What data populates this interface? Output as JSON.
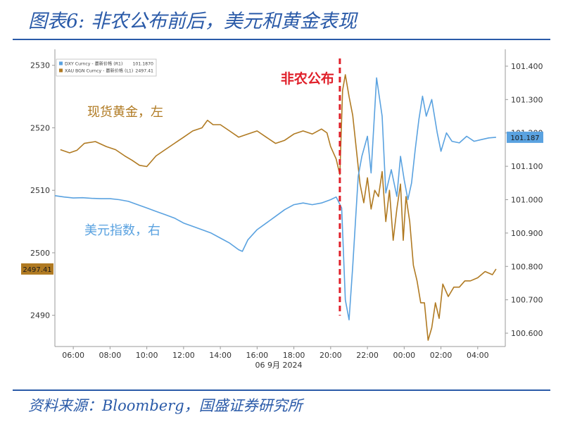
{
  "figure": {
    "title": "图表6:  非农公布前后，美元和黄金表现",
    "source": "资料来源：Bloomberg，国盛证券研究所"
  },
  "colors": {
    "gold": "#b07a22",
    "dollar": "#5aa2e0",
    "event_line": "#e0202a",
    "header": "#2a5aa8"
  },
  "chart_data": {
    "type": "line",
    "title": "",
    "xlabel": "06 9月 2024",
    "x_ticks": [
      "06:00",
      "08:00",
      "10:00",
      "12:00",
      "14:00",
      "16:00",
      "18:00",
      "20:00",
      "22:00",
      "00:00",
      "02:00",
      "04:00"
    ],
    "left_axis": {
      "min": 2485,
      "max": 2532,
      "ticks": [
        "2530",
        "2520",
        "2510",
        "2500",
        "2490"
      ]
    },
    "right_axis": {
      "min": 100.56,
      "max": 101.44,
      "ticks": [
        "101.400",
        "101.300",
        "101.200",
        "101.100",
        "101.000",
        "100.900",
        "100.800",
        "100.700",
        "100.600"
      ]
    },
    "event": {
      "label": "非农公布",
      "time": 20.5
    },
    "annotations": {
      "gold": "现货黄金，左",
      "dollar": "美元指数，右"
    },
    "legend": [
      {
        "name": "DXY Curncy - 最新价格 (R1)",
        "value": "101.1870",
        "color": "#5aa2e0"
      },
      {
        "name": "XAU BGN Curncy - 最新价格 (L1)",
        "value": "2497.41",
        "color": "#b07a22"
      }
    ],
    "last_values": {
      "gold": "2497.41",
      "dollar": "101.187"
    },
    "series": [
      {
        "name": "XAU BGN Curncy",
        "axis": "left",
        "points": [
          [
            5.3,
            2516.5
          ],
          [
            5.8,
            2516
          ],
          [
            6.2,
            2516.4
          ],
          [
            6.6,
            2517.5
          ],
          [
            7.2,
            2517.8
          ],
          [
            7.8,
            2517
          ],
          [
            8.3,
            2516.5
          ],
          [
            8.8,
            2515.5
          ],
          [
            9.2,
            2514.8
          ],
          [
            9.6,
            2514
          ],
          [
            10.0,
            2513.8
          ],
          [
            10.5,
            2515.5
          ],
          [
            11.0,
            2516.5
          ],
          [
            11.5,
            2517.5
          ],
          [
            12.0,
            2518.5
          ],
          [
            12.5,
            2519.5
          ],
          [
            13.0,
            2520
          ],
          [
            13.3,
            2521.2
          ],
          [
            13.6,
            2520.5
          ],
          [
            14.0,
            2520.5
          ],
          [
            14.5,
            2519.5
          ],
          [
            15.0,
            2518.5
          ],
          [
            15.5,
            2519
          ],
          [
            16.0,
            2519.5
          ],
          [
            16.5,
            2518.5
          ],
          [
            17.0,
            2517.5
          ],
          [
            17.5,
            2518
          ],
          [
            18.0,
            2519
          ],
          [
            18.5,
            2519.5
          ],
          [
            19.0,
            2519
          ],
          [
            19.5,
            2519.8
          ],
          [
            19.8,
            2519.2
          ],
          [
            20.0,
            2517
          ],
          [
            20.3,
            2515
          ],
          [
            20.5,
            2512.5
          ],
          [
            20.65,
            2526
          ],
          [
            20.8,
            2528.5
          ],
          [
            21.0,
            2525
          ],
          [
            21.2,
            2522
          ],
          [
            21.4,
            2516.5
          ],
          [
            21.6,
            2511
          ],
          [
            21.8,
            2508
          ],
          [
            22.0,
            2512
          ],
          [
            22.2,
            2507
          ],
          [
            22.4,
            2510
          ],
          [
            22.6,
            2509
          ],
          [
            22.8,
            2513
          ],
          [
            23.0,
            2505
          ],
          [
            23.2,
            2510
          ],
          [
            23.4,
            2502
          ],
          [
            23.6,
            2507
          ],
          [
            23.8,
            2511
          ],
          [
            23.95,
            2502
          ],
          [
            24.1,
            2509
          ],
          [
            24.3,
            2505
          ],
          [
            24.5,
            2498
          ],
          [
            24.7,
            2495.5
          ],
          [
            24.9,
            2492
          ],
          [
            25.1,
            2492
          ],
          [
            25.3,
            2486
          ],
          [
            25.5,
            2488
          ],
          [
            25.7,
            2492
          ],
          [
            25.9,
            2489.5
          ],
          [
            26.1,
            2495
          ],
          [
            26.4,
            2493
          ],
          [
            26.7,
            2494.5
          ],
          [
            27.0,
            2494.5
          ],
          [
            27.3,
            2495.5
          ],
          [
            27.6,
            2495.5
          ],
          [
            28.0,
            2496
          ],
          [
            28.4,
            2497
          ],
          [
            28.8,
            2496.5
          ],
          [
            29.0,
            2497.41
          ]
        ]
      },
      {
        "name": "DXY Curncy",
        "axis": "right",
        "points": [
          [
            5.0,
            101.012
          ],
          [
            5.5,
            101.008
          ],
          [
            6.0,
            101.005
          ],
          [
            6.5,
            101.006
          ],
          [
            7.0,
            101.004
          ],
          [
            7.5,
            101.003
          ],
          [
            8.0,
            101.003
          ],
          [
            8.5,
            101.0
          ],
          [
            9.0,
            100.995
          ],
          [
            9.5,
            100.985
          ],
          [
            10.0,
            100.975
          ],
          [
            10.5,
            100.965
          ],
          [
            11.0,
            100.955
          ],
          [
            11.5,
            100.945
          ],
          [
            12.0,
            100.93
          ],
          [
            12.5,
            100.92
          ],
          [
            13.0,
            100.91
          ],
          [
            13.5,
            100.9
          ],
          [
            14.0,
            100.885
          ],
          [
            14.5,
            100.87
          ],
          [
            15.0,
            100.85
          ],
          [
            15.2,
            100.845
          ],
          [
            15.5,
            100.88
          ],
          [
            16.0,
            100.91
          ],
          [
            16.5,
            100.93
          ],
          [
            17.0,
            100.95
          ],
          [
            17.5,
            100.97
          ],
          [
            18.0,
            100.985
          ],
          [
            18.5,
            100.99
          ],
          [
            19.0,
            100.985
          ],
          [
            19.5,
            100.99
          ],
          [
            20.0,
            101.0
          ],
          [
            20.3,
            101.008
          ],
          [
            20.6,
            100.975
          ],
          [
            20.8,
            100.7
          ],
          [
            21.0,
            100.64
          ],
          [
            21.2,
            100.8
          ],
          [
            21.5,
            101.07
          ],
          [
            21.7,
            101.13
          ],
          [
            22.0,
            101.19
          ],
          [
            22.2,
            101.08
          ],
          [
            22.5,
            101.365
          ],
          [
            22.8,
            101.25
          ],
          [
            23.0,
            101.02
          ],
          [
            23.3,
            101.09
          ],
          [
            23.6,
            101.01
          ],
          [
            23.8,
            101.13
          ],
          [
            24.0,
            101.06
          ],
          [
            24.2,
            101.0
          ],
          [
            24.4,
            101.05
          ],
          [
            24.6,
            101.15
          ],
          [
            24.8,
            101.24
          ],
          [
            25.0,
            101.31
          ],
          [
            25.2,
            101.25
          ],
          [
            25.5,
            101.3
          ],
          [
            25.8,
            101.2
          ],
          [
            26.0,
            101.145
          ],
          [
            26.3,
            101.2
          ],
          [
            26.6,
            101.175
          ],
          [
            27.0,
            101.17
          ],
          [
            27.4,
            101.19
          ],
          [
            27.8,
            101.175
          ],
          [
            28.2,
            101.18
          ],
          [
            28.6,
            101.185
          ],
          [
            29.0,
            101.187
          ]
        ]
      }
    ]
  }
}
